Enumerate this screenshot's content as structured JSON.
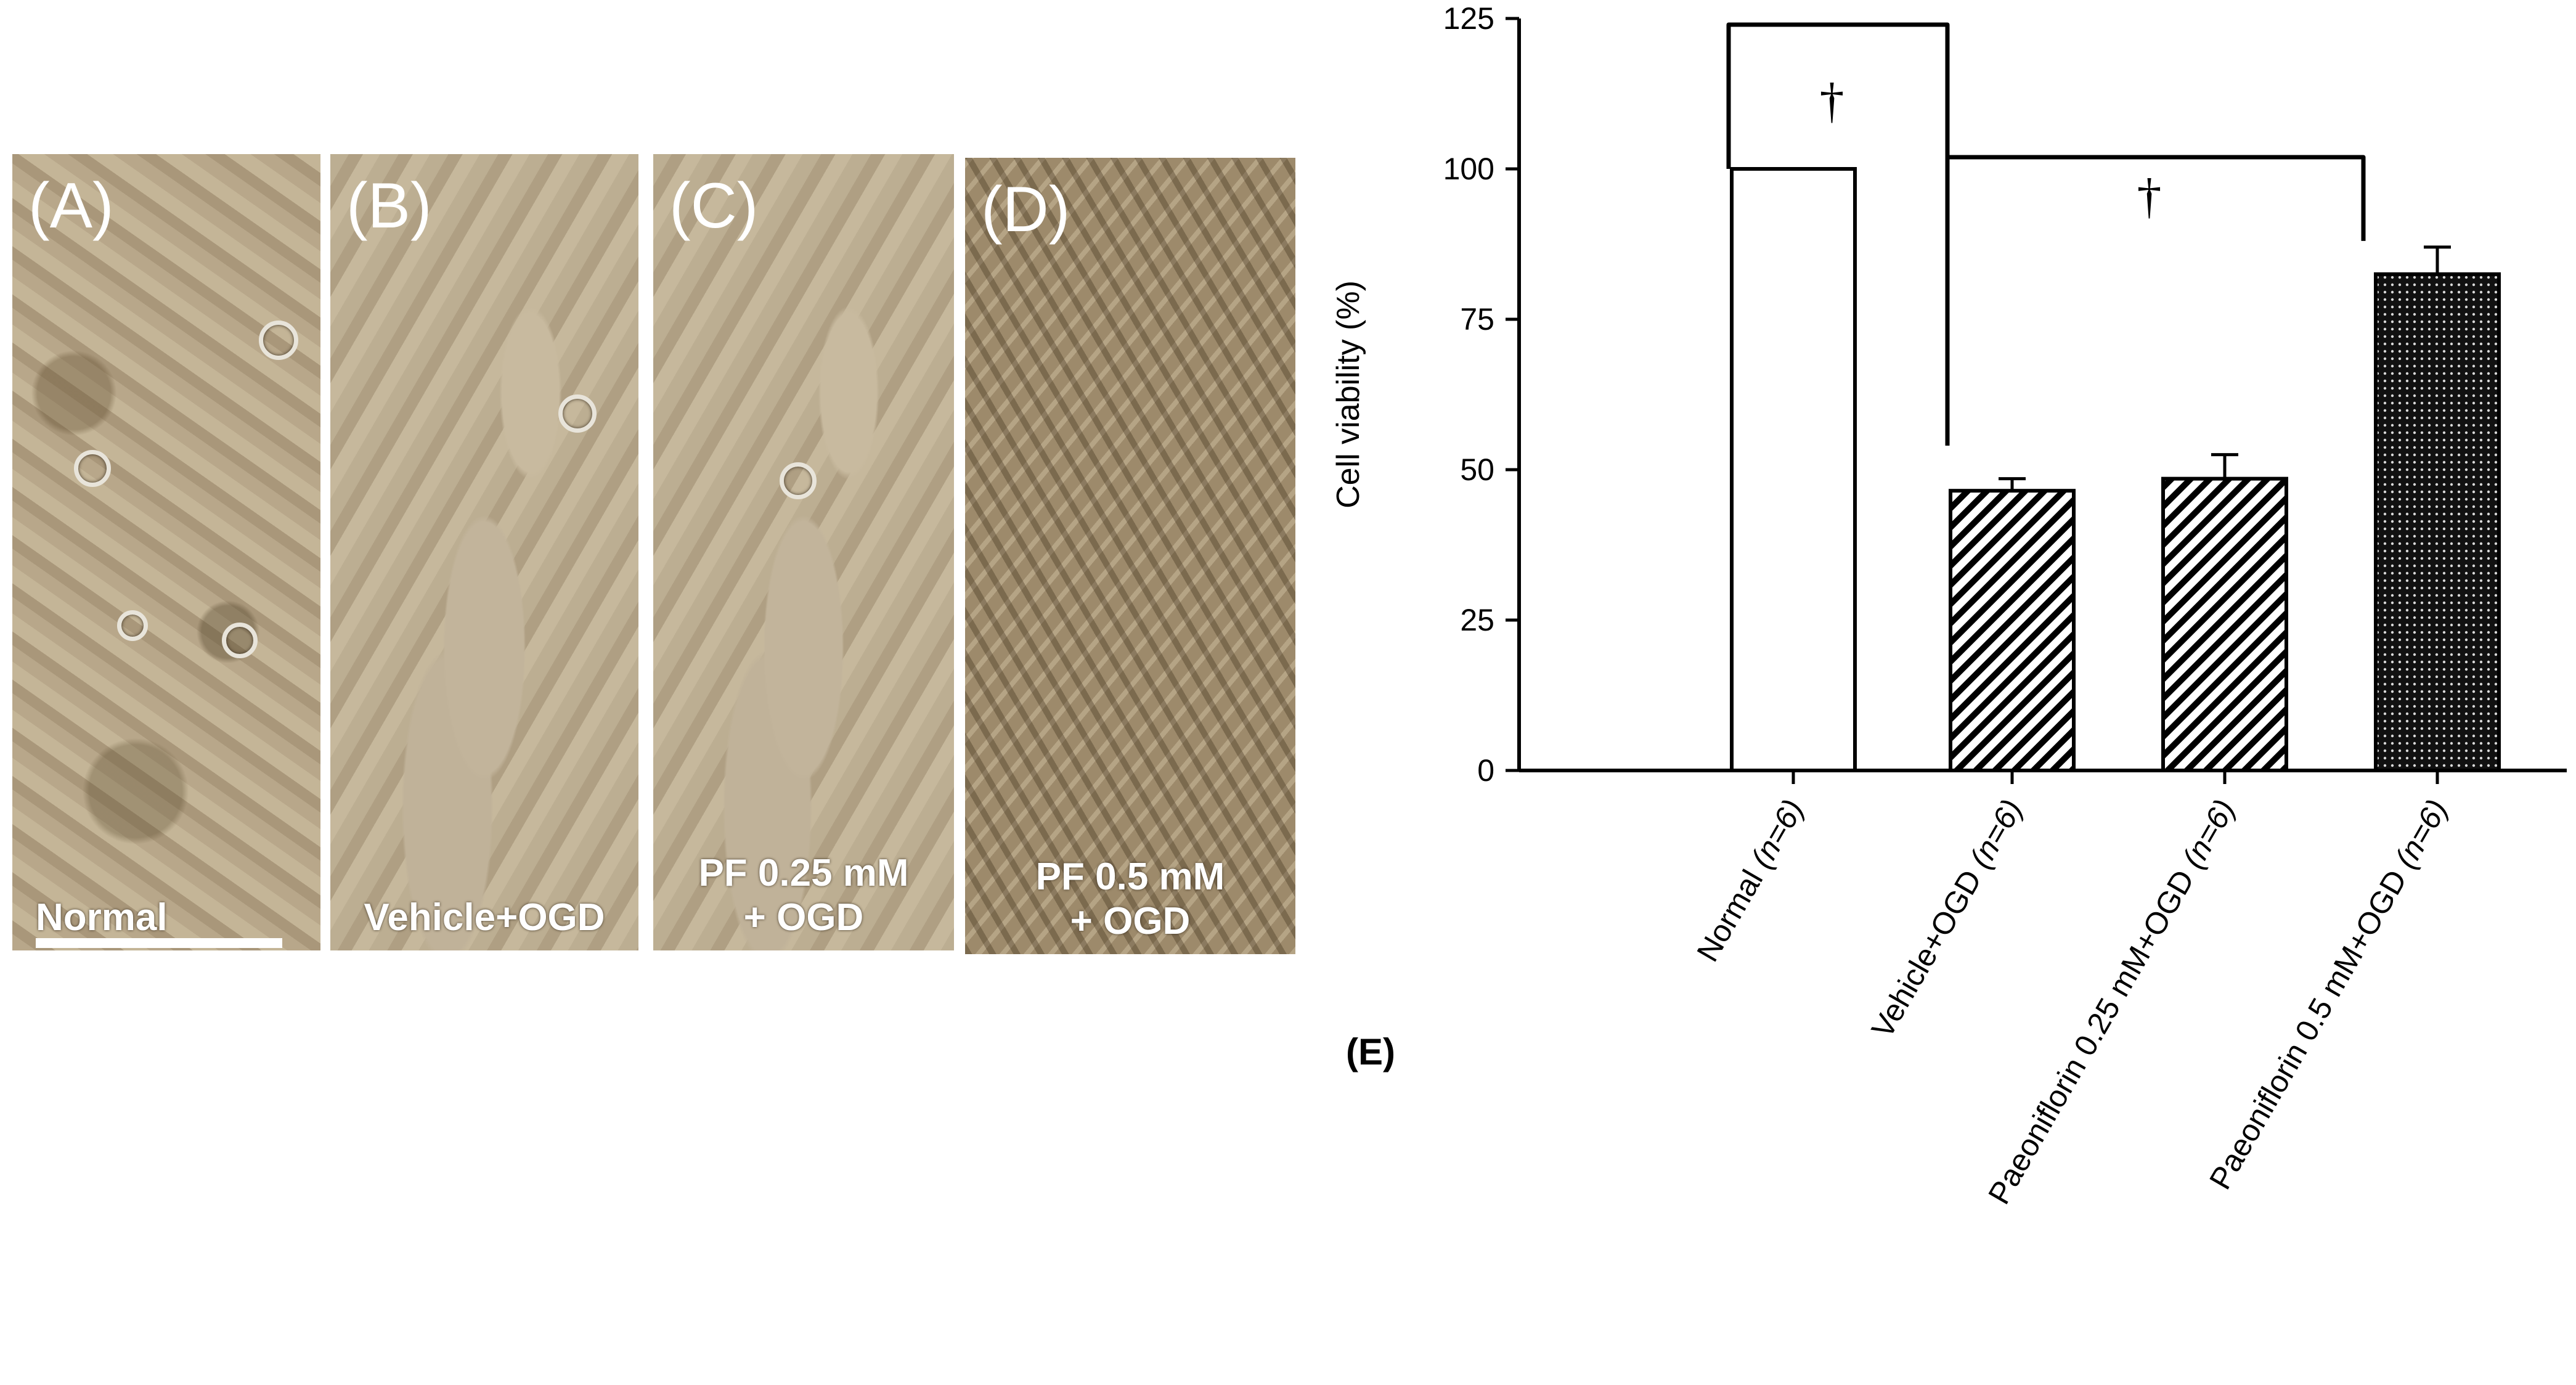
{
  "panels": [
    {
      "letter": "(A)",
      "caption": "Normal"
    },
    {
      "letter": "(B)",
      "caption": "Vehicle+OGD"
    },
    {
      "letter": "(C)",
      "caption_line1": "PF 0.25 mM",
      "caption_line2": "+ OGD"
    },
    {
      "letter": "(D)",
      "caption_line1": "PF 0.5 mM",
      "caption_line2": "+ OGD"
    }
  ],
  "chart_data": {
    "type": "bar",
    "panel_label": "(E)",
    "ylabel": "Cell viability (%)",
    "xlabel": "",
    "ylim": [
      0,
      125
    ],
    "yticks": [
      0,
      25,
      50,
      75,
      100,
      125
    ],
    "categories": [
      "Normal (n=6)",
      "Vehicle+OGD (n=6)",
      "Paeoniflorin 0.25 mM+OGD (n=6)",
      "Paeoniflorin 0.5 mM+OGD (n=6)"
    ],
    "values": [
      100,
      46.5,
      48.5,
      82.5
    ],
    "errors": [
      0,
      2,
      4,
      4.5
    ],
    "fills": [
      "white",
      "diagonal-hatch",
      "diagonal-hatch",
      "dense-dots"
    ],
    "significance": [
      {
        "from": 0,
        "to": 1,
        "marker": "†"
      },
      {
        "from": 1,
        "to": 3,
        "marker": "†"
      }
    ]
  },
  "colors": {
    "ink": "#000000",
    "caption": "#ffffff"
  }
}
